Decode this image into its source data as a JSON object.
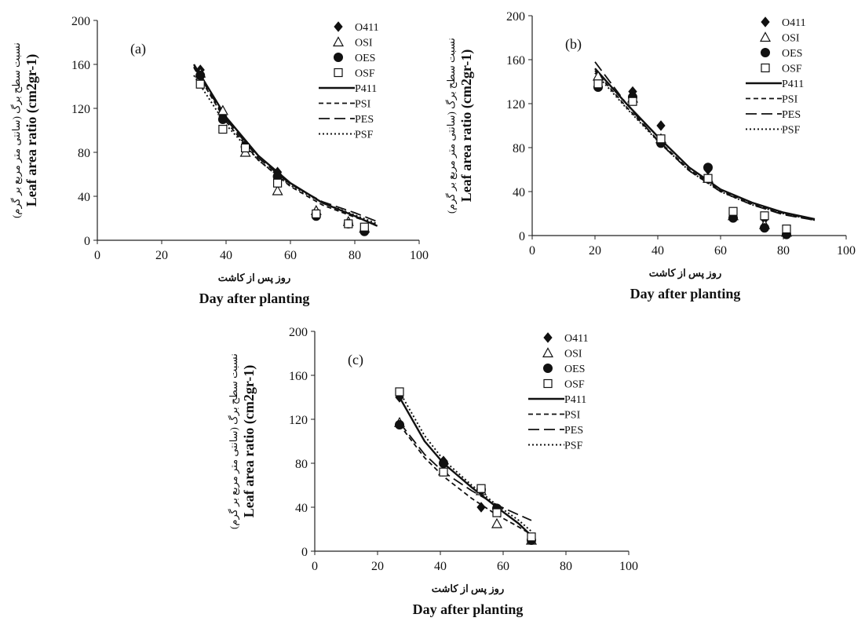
{
  "figure": {
    "panels": [
      "a",
      "b",
      "c"
    ]
  },
  "chart_data": [
    {
      "type": "scatter",
      "panel_label": "(a)",
      "xlabel_fa": "روز پس از کاشت",
      "xlabel": "Day after planting",
      "ylabel": "Leaf area ratio (cm2gr-1)",
      "ylabel_fa": "نسبت سطح برگ (سانتی متر مربع بر گرم)",
      "xlim": [
        0,
        100
      ],
      "ylim": [
        0,
        200
      ],
      "xticks": [
        0,
        20,
        40,
        60,
        80,
        100
      ],
      "yticks": [
        0,
        40,
        80,
        120,
        160,
        200
      ],
      "grid": false,
      "legend_position": "top-right",
      "series": [
        {
          "name": "O411",
          "marker": "diamond",
          "x": [
            32,
            39,
            46,
            56,
            68,
            78,
            83
          ],
          "y": [
            155,
            113,
            87,
            62,
            25,
            16,
            10
          ]
        },
        {
          "name": "OSI",
          "marker": "triangle",
          "x": [
            32,
            39,
            46,
            56,
            68,
            78,
            83
          ],
          "y": [
            152,
            118,
            80,
            45,
            27,
            17,
            11
          ]
        },
        {
          "name": "OES",
          "marker": "circle",
          "x": [
            32,
            39,
            46,
            56,
            68,
            78,
            83
          ],
          "y": [
            150,
            110,
            85,
            58,
            22,
            15,
            8
          ]
        },
        {
          "name": "OSF",
          "marker": "square",
          "x": [
            32,
            39,
            46,
            56,
            68,
            78,
            83
          ],
          "y": [
            142,
            101,
            84,
            52,
            24,
            15,
            12
          ]
        }
      ],
      "fits": [
        {
          "name": "P411",
          "style": "solid",
          "x": [
            30,
            40,
            50,
            60,
            70,
            80,
            87
          ],
          "y": [
            160,
            112,
            77,
            52,
            34,
            22,
            13
          ]
        },
        {
          "name": "PSI",
          "style": "short-dash",
          "x": [
            30,
            40,
            50,
            60,
            70,
            80,
            87
          ],
          "y": [
            157,
            108,
            73,
            49,
            32,
            21,
            14
          ]
        },
        {
          "name": "PES",
          "style": "long-dash",
          "x": [
            30,
            40,
            50,
            60,
            70,
            80,
            87
          ],
          "y": [
            158,
            110,
            75,
            51,
            35,
            25,
            17
          ]
        },
        {
          "name": "PSF",
          "style": "dotted",
          "x": [
            30,
            40,
            50,
            60,
            70,
            80,
            87
          ],
          "y": [
            150,
            105,
            73,
            50,
            34,
            23,
            15
          ]
        }
      ]
    },
    {
      "type": "scatter",
      "panel_label": "(b)",
      "xlabel_fa": "روز پس از کاشت",
      "xlabel": "Day after planting",
      "ylabel": "Leaf area ratio (cm2gr-1)",
      "ylabel_fa": "نسبت سطح برگ (سانتی متر مربع بر گرم)",
      "xlim": [
        0,
        100
      ],
      "ylim": [
        0,
        200
      ],
      "xticks": [
        0,
        20,
        40,
        60,
        80,
        100
      ],
      "yticks": [
        0,
        40,
        80,
        120,
        160,
        200
      ],
      "grid": false,
      "legend_position": "top-right",
      "series": [
        {
          "name": "O411",
          "marker": "diamond",
          "x": [
            21,
            32,
            41,
            56,
            64,
            74,
            81
          ],
          "y": [
            140,
            131,
            100,
            60,
            20,
            15,
            5
          ]
        },
        {
          "name": "OSI",
          "marker": "triangle",
          "x": [
            21,
            32,
            41,
            56,
            64,
            74,
            81
          ],
          "y": [
            145,
            125,
            88,
            52,
            18,
            10,
            3
          ]
        },
        {
          "name": "OES",
          "marker": "circle",
          "x": [
            21,
            32,
            41,
            56,
            64,
            74,
            81
          ],
          "y": [
            135,
            126,
            84,
            62,
            16,
            7,
            1
          ]
        },
        {
          "name": "OSF",
          "marker": "square",
          "x": [
            21,
            32,
            41,
            56,
            64,
            74,
            81
          ],
          "y": [
            138,
            122,
            88,
            52,
            22,
            18,
            6
          ]
        }
      ],
      "fits": [
        {
          "name": "P411",
          "style": "solid",
          "x": [
            20,
            30,
            40,
            50,
            60,
            70,
            80,
            90
          ],
          "y": [
            152,
            120,
            90,
            62,
            42,
            30,
            21,
            15
          ]
        },
        {
          "name": "PSI",
          "style": "short-dash",
          "x": [
            20,
            30,
            40,
            50,
            60,
            70,
            80,
            90
          ],
          "y": [
            150,
            117,
            87,
            60,
            41,
            29,
            20,
            14
          ]
        },
        {
          "name": "PES",
          "style": "long-dash",
          "x": [
            20,
            30,
            40,
            50,
            60,
            70,
            80,
            90
          ],
          "y": [
            158,
            120,
            86,
            59,
            40,
            28,
            19,
            14
          ]
        },
        {
          "name": "PSF",
          "style": "dotted",
          "x": [
            20,
            30,
            40,
            50,
            60,
            70,
            80,
            90
          ],
          "y": [
            148,
            116,
            86,
            59,
            40,
            28,
            20,
            14
          ]
        }
      ]
    },
    {
      "type": "scatter",
      "panel_label": "(c)",
      "xlabel_fa": "روز پس از کاشت",
      "xlabel": "Day after planting",
      "ylabel": "Leaf area ratio (cm2gr-1)",
      "ylabel_fa": "نسبت سطح برگ (سانتی متر مربع بر گرم)",
      "xlim": [
        0,
        100
      ],
      "ylim": [
        0,
        200
      ],
      "xticks": [
        0,
        20,
        40,
        60,
        80,
        100
      ],
      "yticks": [
        0,
        40,
        80,
        120,
        160,
        200
      ],
      "grid": false,
      "legend_position": "top-right",
      "series": [
        {
          "name": "O411",
          "marker": "diamond",
          "x": [
            27,
            41,
            53,
            58,
            69
          ],
          "y": [
            140,
            82,
            40,
            38,
            12
          ]
        },
        {
          "name": "OSI",
          "marker": "triangle",
          "x": [
            27,
            41,
            53,
            58,
            69
          ],
          "y": [
            117,
            73,
            55,
            25,
            10
          ]
        },
        {
          "name": "OES",
          "marker": "circle",
          "x": [
            27,
            41,
            53,
            58,
            69
          ],
          "y": [
            115,
            80,
            56,
            39,
            10
          ]
        },
        {
          "name": "OSF",
          "marker": "square",
          "x": [
            27,
            41,
            53,
            58,
            69
          ],
          "y": [
            145,
            72,
            57,
            35,
            13
          ]
        }
      ],
      "fits": [
        {
          "name": "P411",
          "style": "solid",
          "x": [
            27,
            35,
            41,
            50,
            58,
            65,
            69
          ],
          "y": [
            140,
            100,
            80,
            58,
            40,
            25,
            14
          ]
        },
        {
          "name": "PSI",
          "style": "short-dash",
          "x": [
            27,
            35,
            41,
            50,
            58,
            65,
            69
          ],
          "y": [
            115,
            85,
            68,
            48,
            33,
            22,
            15
          ]
        },
        {
          "name": "PES",
          "style": "long-dash",
          "x": [
            27,
            35,
            41,
            50,
            58,
            65,
            69
          ],
          "y": [
            117,
            88,
            72,
            55,
            42,
            33,
            28
          ]
        },
        {
          "name": "PSF",
          "style": "dotted",
          "x": [
            27,
            35,
            41,
            50,
            58,
            65,
            69
          ],
          "y": [
            145,
            105,
            83,
            60,
            42,
            28,
            18
          ]
        }
      ]
    }
  ]
}
